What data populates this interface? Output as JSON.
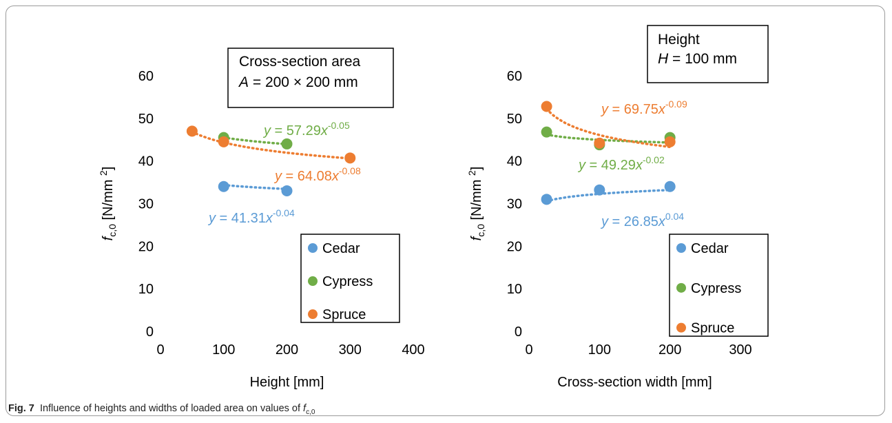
{
  "caption": {
    "label": "Fig. 7",
    "text": "Influence of heights and widths of loaded area on values of ",
    "symbol": "f",
    "subscript": "c,0"
  },
  "colors": {
    "Cedar": "#5b9bd5",
    "Cypress": "#70ad47",
    "Spruce": "#ed7d31"
  },
  "chart_data": [
    {
      "type": "scatter",
      "xlabel": "Height [mm]",
      "ylabel": {
        "symbol": "f",
        "subscript": "c,0",
        "unit": " [N/mm ",
        "power": "2",
        "close": "]"
      },
      "xlim": [
        0,
        400
      ],
      "ylim": [
        0,
        60
      ],
      "xticks": [
        0,
        100,
        200,
        300,
        400
      ],
      "yticks": [
        0,
        10,
        20,
        30,
        40,
        50,
        60
      ],
      "annotation": [
        "Cross-section area",
        "A",
        " = 200 × 200 mm"
      ],
      "legend_position": "bottom-right",
      "series": [
        {
          "name": "Cedar",
          "x": [
            100,
            200
          ],
          "y": [
            34.0,
            33.0
          ],
          "trend": {
            "a": 41.31,
            "b": -0.04
          },
          "eq_coef": "41.31",
          "eq_exp": "-0.04"
        },
        {
          "name": "Cypress",
          "x": [
            100,
            200
          ],
          "y": [
            45.5,
            44.0
          ],
          "trend": {
            "a": 57.29,
            "b": -0.05
          },
          "eq_coef": "57.29",
          "eq_exp": "-0.05"
        },
        {
          "name": "Spruce",
          "x": [
            50,
            100,
            300
          ],
          "y": [
            47.0,
            44.5,
            40.7
          ],
          "trend": {
            "a": 64.08,
            "b": -0.08
          },
          "eq_coef": "64.08",
          "eq_exp": "-0.08"
        }
      ]
    },
    {
      "type": "scatter",
      "xlabel": "Cross-section width [mm]",
      "ylabel": {
        "symbol": "f",
        "subscript": "c,0",
        "unit": " [N/mm ",
        "power": "2",
        "close": "]"
      },
      "xlim": [
        0,
        300
      ],
      "ylim": [
        0,
        60
      ],
      "xticks": [
        0,
        100,
        200,
        300
      ],
      "yticks": [
        0,
        10,
        20,
        30,
        40,
        50,
        60
      ],
      "annotation": [
        "Height",
        "H",
        " = 100 mm"
      ],
      "legend_position": "bottom-right",
      "series": [
        {
          "name": "Cedar",
          "x": [
            25,
            100,
            200
          ],
          "y": [
            31.0,
            33.2,
            34.0
          ],
          "trend": {
            "a": 26.85,
            "b": 0.04
          },
          "eq_coef": "26.85",
          "eq_exp": "0.04"
        },
        {
          "name": "Cypress",
          "x": [
            25,
            100,
            200
          ],
          "y": [
            46.8,
            43.8,
            45.5
          ],
          "trend": {
            "a": 49.29,
            "b": -0.02
          },
          "eq_coef": "49.29",
          "eq_exp": "-0.02"
        },
        {
          "name": "Spruce",
          "x": [
            25,
            100,
            200
          ],
          "y": [
            52.8,
            44.2,
            44.5
          ],
          "trend": {
            "a": 69.75,
            "b": -0.09
          },
          "eq_coef": "69.75",
          "eq_exp": "-0.09"
        }
      ]
    }
  ]
}
